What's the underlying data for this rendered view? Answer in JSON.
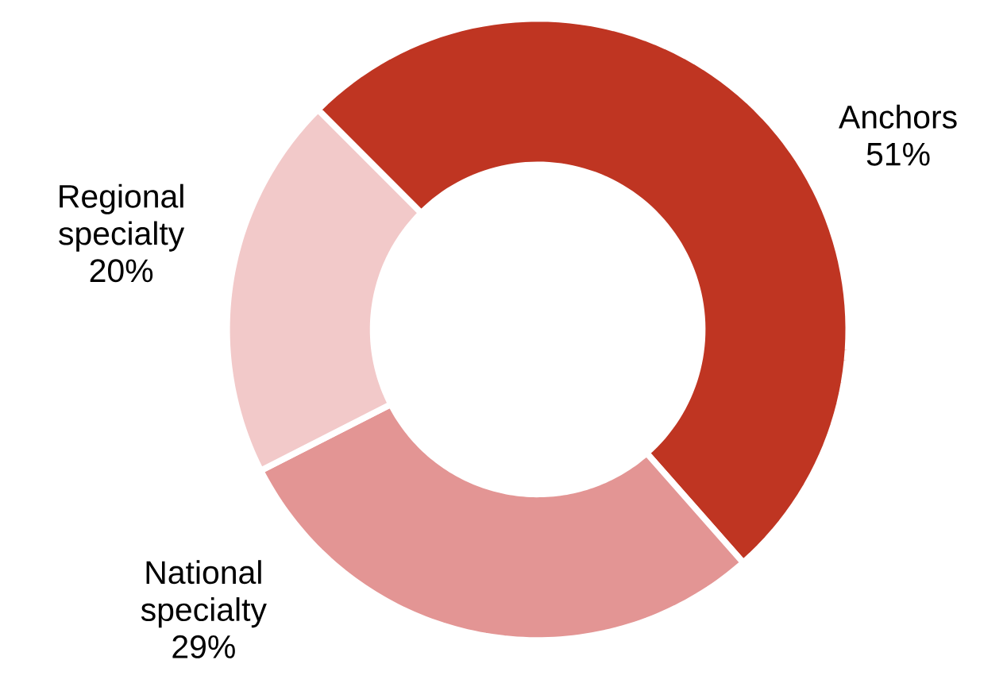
{
  "chart_data": {
    "type": "donut",
    "categories": [
      "Anchors",
      "National specialty",
      "Regional specialty"
    ],
    "values": [
      51,
      29,
      20
    ],
    "value_labels": [
      "51%",
      "29%",
      "20%"
    ],
    "colors": [
      "#bf3522",
      "#e39594",
      "#f2c9c9"
    ]
  }
}
